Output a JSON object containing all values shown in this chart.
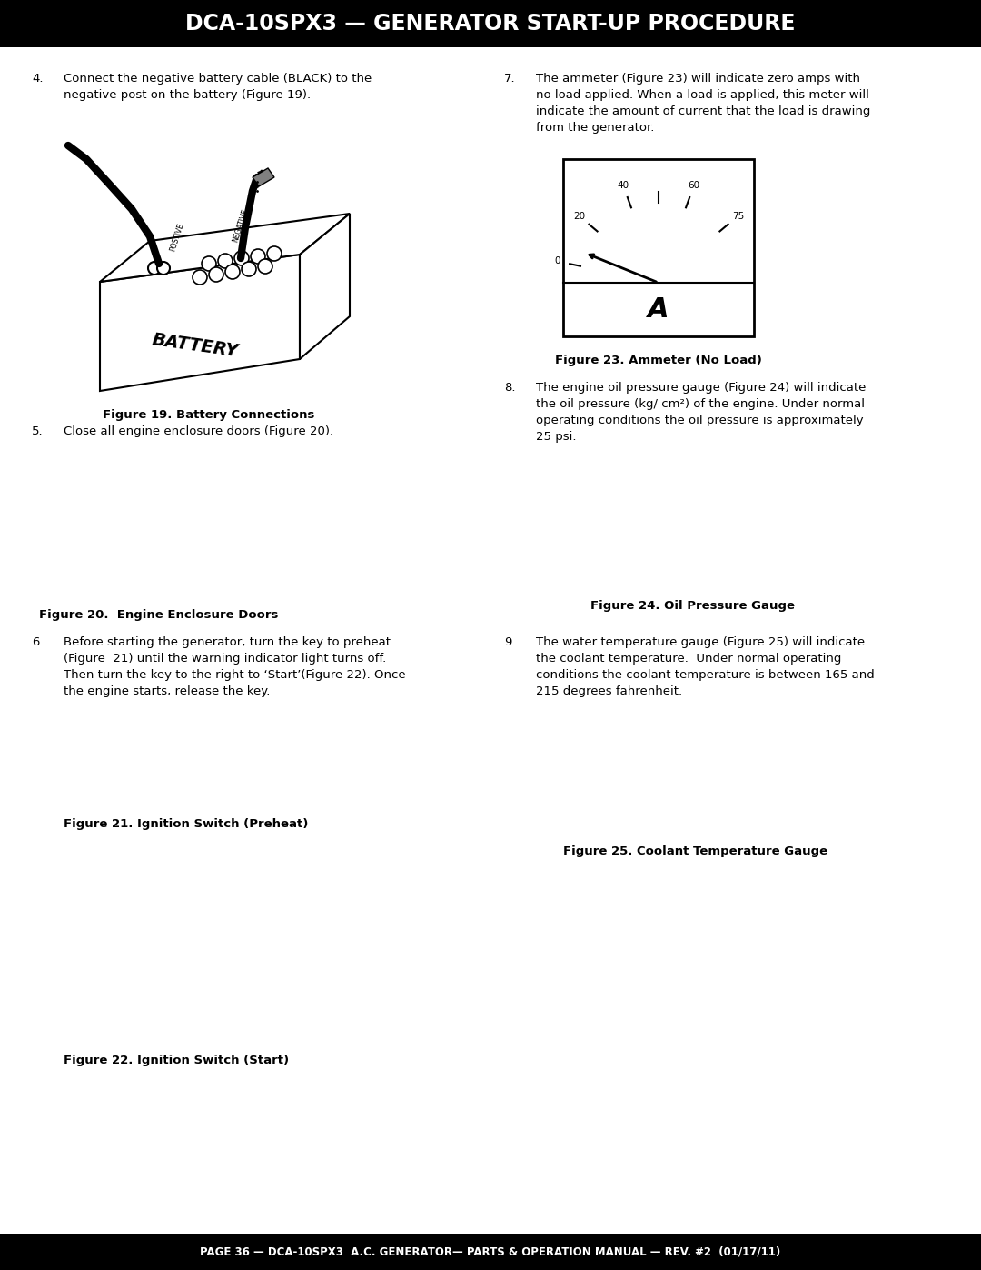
{
  "title": "DCA-10SPX3 — GENERATOR START-UP PROCEDURE",
  "footer": "PAGE 36 — DCA-10SPX3  A.C. GENERATOR— PARTS & OPERATION MANUAL — REV. #2  (01/17/11)",
  "title_bg": "#000000",
  "title_color": "#ffffff",
  "footer_bg": "#000000",
  "footer_color": "#ffffff",
  "body_bg": "#ffffff",
  "item4_text1": "Connect the negative battery cable (BLACK) to the",
  "item4_text2": "negative post on the battery (Figure 19).",
  "fig19_caption": "Figure 19. Battery Connections",
  "item5_text": "Close all engine enclosure doors (Figure 20).",
  "fig20_caption": "Figure 20.  Engine Enclosure Doors",
  "item6_text1": "Before starting the generator, turn the key to preheat",
  "item6_text2": "(Figure  21) until the warning indicator light turns off.",
  "item6_text3": "Then turn the key to the right to ‘Start’(Figure 22). Once",
  "item6_text4": "the engine starts, release the key.",
  "fig21_caption": "Figure 21. Ignition Switch (Preheat)",
  "fig22_caption": "Figure 22. Ignition Switch (Start)",
  "item7_text1": "The ammeter (Figure 23) will indicate zero amps with",
  "item7_text2": "no load applied. When a load is applied, this meter will",
  "item7_text3": "indicate the amount of current that the load is drawing",
  "item7_text4": "from the generator.",
  "fig23_caption": "Figure 23. Ammeter (No Load)",
  "item8_text1": "The engine oil pressure gauge (Figure 24) will indicate",
  "item8_text2": "the oil pressure (kg/ cm²) of the engine. Under normal",
  "item8_text3": "operating conditions the oil pressure is approximately",
  "item8_text4": "25 psi.",
  "fig24_caption": "Figure 24. Oil Pressure Gauge",
  "item9_text1": "The water temperature gauge (Figure 25) will indicate",
  "item9_text2": "the coolant temperature.  Under normal operating",
  "item9_text3": "conditions the coolant temperature is between 165 and",
  "item9_text4": "215 degrees fahrenheit.",
  "fig25_caption": "Figure 25. Coolant Temperature Gauge"
}
